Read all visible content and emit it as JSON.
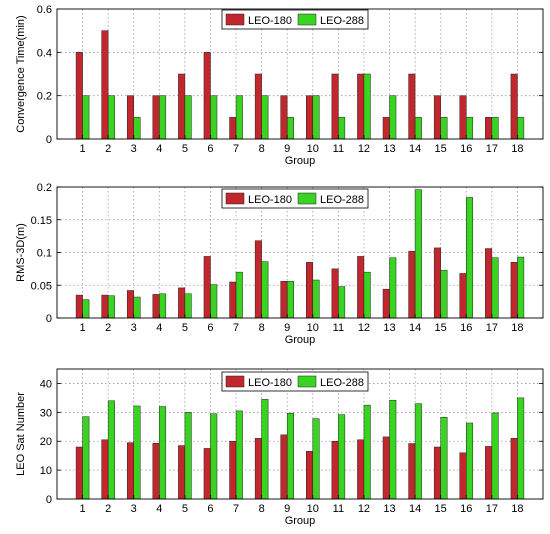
{
  "chart_data": [
    {
      "type": "bar",
      "xlabel": "Group",
      "ylabel": "Convergence Time(min)",
      "categories": [
        "1",
        "2",
        "3",
        "4",
        "5",
        "6",
        "7",
        "8",
        "9",
        "10",
        "11",
        "12",
        "13",
        "14",
        "15",
        "16",
        "17",
        "18"
      ],
      "ylim": [
        0,
        0.6
      ],
      "yticks": [
        "0",
        "0.2",
        "0.4",
        "0.6"
      ],
      "ytick_values": [
        0,
        0.2,
        0.4,
        0.6
      ],
      "grid": true,
      "legend": "top-center",
      "series": [
        {
          "name": "LEO-180",
          "color": "#c1272d",
          "values": [
            0.4,
            0.5,
            0.2,
            0.2,
            0.3,
            0.4,
            0.1,
            0.3,
            0.2,
            0.2,
            0.3,
            0.3,
            0.1,
            0.3,
            0.2,
            0.2,
            0.1,
            0.3
          ]
        },
        {
          "name": "LEO-288",
          "color": "#39d321",
          "values": [
            0.2,
            0.2,
            0.1,
            0.2,
            0.2,
            0.2,
            0.2,
            0.2,
            0.1,
            0.2,
            0.1,
            0.3,
            0.2,
            0.1,
            0.1,
            0.1,
            0.1,
            0.1
          ]
        }
      ]
    },
    {
      "type": "bar",
      "xlabel": "Group",
      "ylabel": "RMS-3D(m)",
      "categories": [
        "1",
        "2",
        "3",
        "4",
        "5",
        "6",
        "7",
        "8",
        "9",
        "10",
        "11",
        "12",
        "13",
        "14",
        "15",
        "16",
        "17",
        "18"
      ],
      "ylim": [
        0,
        0.2
      ],
      "yticks": [
        "0",
        "0.05",
        "0.1",
        "0.15",
        "0.2"
      ],
      "ytick_values": [
        0,
        0.05,
        0.1,
        0.15,
        0.2
      ],
      "grid": true,
      "legend": "top-right",
      "series": [
        {
          "name": "LEO-180",
          "color": "#c1272d",
          "values": [
            0.035,
            0.035,
            0.042,
            0.036,
            0.046,
            0.094,
            0.055,
            0.118,
            0.056,
            0.085,
            0.075,
            0.094,
            0.044,
            0.102,
            0.107,
            0.068,
            0.106,
            0.085
          ]
        },
        {
          "name": "LEO-288",
          "color": "#39d321",
          "values": [
            0.028,
            0.034,
            0.032,
            0.037,
            0.037,
            0.051,
            0.07,
            0.086,
            0.056,
            0.058,
            0.048,
            0.07,
            0.092,
            0.196,
            0.073,
            0.184,
            0.092,
            0.093
          ]
        }
      ]
    },
    {
      "type": "bar",
      "xlabel": "Group",
      "ylabel": "LEO Sat Number",
      "categories": [
        "1",
        "2",
        "3",
        "4",
        "5",
        "6",
        "7",
        "8",
        "9",
        "10",
        "11",
        "12",
        "13",
        "14",
        "15",
        "16",
        "17",
        "18"
      ],
      "ylim": [
        0,
        45
      ],
      "yticks": [
        "0",
        "10",
        "20",
        "30",
        "40"
      ],
      "ytick_values": [
        0,
        10,
        20,
        30,
        40
      ],
      "grid": true,
      "legend": "top-center",
      "series": [
        {
          "name": "LEO-180",
          "color": "#c1272d",
          "values": [
            18,
            20.5,
            19.5,
            19.3,
            18.5,
            17.5,
            20,
            21,
            22.2,
            16.5,
            20,
            20.5,
            21.5,
            19.2,
            18,
            16,
            18.2,
            21
          ]
        },
        {
          "name": "LEO-288",
          "color": "#39d321",
          "values": [
            28.5,
            34,
            32.2,
            32,
            30,
            29.5,
            30.5,
            34.5,
            29.7,
            27.8,
            29.2,
            32.5,
            34.2,
            33,
            28.3,
            26.3,
            29.8,
            35
          ]
        }
      ]
    }
  ]
}
